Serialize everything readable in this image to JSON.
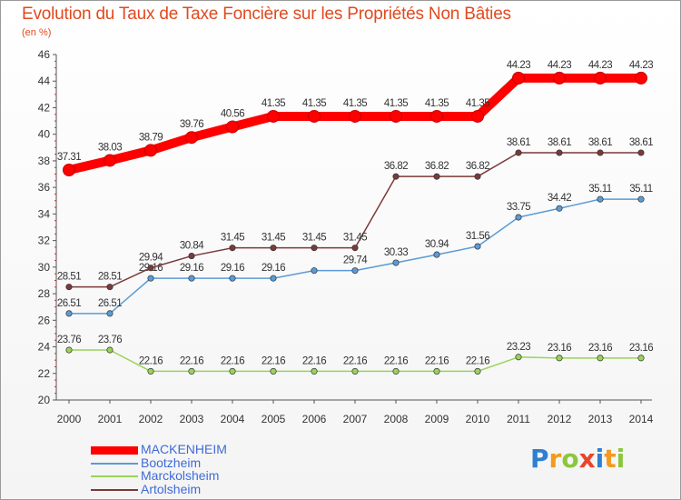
{
  "title": "Evolution du Taux de Taxe Foncière sur les Propriétés Non Bâties",
  "subtitle": "(en %)",
  "logo": {
    "text": "Proxiti",
    "colors": [
      "#2f7fd3",
      "#f29a1e",
      "#8cc63e",
      "#e8452c",
      "#2f7fd3",
      "#f29a1e",
      "#8cc63e"
    ]
  },
  "chart_data": {
    "type": "line",
    "x": [
      "2000",
      "2001",
      "2002",
      "2003",
      "2004",
      "2005",
      "2006",
      "2007",
      "2008",
      "2009",
      "2010",
      "2011",
      "2012",
      "2013",
      "2014"
    ],
    "ylim": [
      20,
      46
    ],
    "yticks": [
      20,
      22,
      24,
      26,
      28,
      30,
      32,
      34,
      36,
      38,
      40,
      42,
      44,
      46
    ],
    "grid": false,
    "legend_position": "bottom-left",
    "series": [
      {
        "name": "MACKENHEIM",
        "color": "#ff0000",
        "highlight": true,
        "values": [
          37.31,
          38.03,
          38.79,
          39.76,
          40.56,
          41.35,
          41.35,
          41.35,
          41.35,
          41.35,
          41.35,
          44.23,
          44.23,
          44.23,
          44.23
        ],
        "labels": [
          "37.31",
          "38.03",
          "38.79",
          "39.76",
          "40.56",
          "41.35",
          "41.35",
          "41.35",
          "41.35",
          "41.35",
          "41.35",
          "44.23",
          "44.23",
          "44.23",
          "44.23"
        ]
      },
      {
        "name": "Bootzheim",
        "color": "#5b9bd5",
        "highlight": false,
        "values": [
          26.51,
          26.51,
          29.16,
          29.16,
          29.16,
          29.16,
          29.74,
          29.74,
          30.33,
          30.94,
          31.56,
          33.75,
          34.42,
          35.11,
          35.11
        ],
        "labels": [
          "26.51",
          "26.51",
          "29.16",
          "29.16",
          "29.16",
          "29.16",
          "",
          "29.74",
          "30.33",
          "30.94",
          "31.56",
          "33.75",
          "34.42",
          "35.11",
          "35.11"
        ]
      },
      {
        "name": "Marckolsheim",
        "color": "#99d35a",
        "highlight": false,
        "values": [
          23.76,
          23.76,
          22.16,
          22.16,
          22.16,
          22.16,
          22.16,
          22.16,
          22.16,
          22.16,
          22.16,
          23.23,
          23.16,
          23.16,
          23.16
        ],
        "labels": [
          "23.76",
          "23.76",
          "22.16",
          "22.16",
          "22.16",
          "22.16",
          "22.16",
          "22.16",
          "22.16",
          "22.16",
          "22.16",
          "23.23",
          "23.16",
          "23.16",
          "23.16"
        ]
      },
      {
        "name": "Artolsheim",
        "color": "#7b3a3a",
        "highlight": false,
        "values": [
          28.51,
          28.51,
          29.94,
          30.84,
          31.45,
          31.45,
          31.45,
          31.45,
          36.82,
          36.82,
          36.82,
          38.61,
          38.61,
          38.61,
          38.61
        ],
        "labels": [
          "28.51",
          "28.51",
          "29.94",
          "30.84",
          "31.45",
          "31.45",
          "31.45",
          "31.45",
          "36.82",
          "36.82",
          "36.82",
          "38.61",
          "38.61",
          "38.61",
          "38.61"
        ]
      }
    ]
  }
}
